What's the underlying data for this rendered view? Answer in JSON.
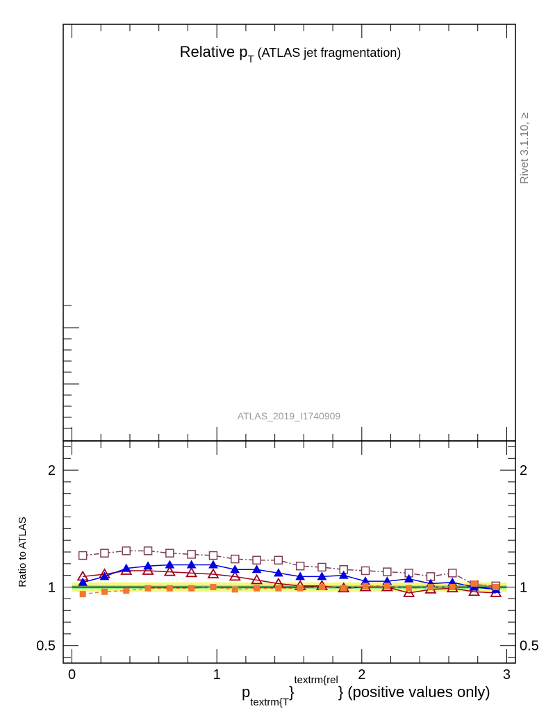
{
  "chart_data": {
    "type": "line",
    "title_main": "Relative p",
    "title_sub": "T",
    "title_rest": " (ATLAS jet fragmentation)",
    "analysis_label": "ATLAS_2019_I1740909",
    "side_label": "Rivet 3.1.10, ≥",
    "ratio_ylabel": "Ratio to ATLAS",
    "xlabel": {
      "p": "p",
      "sub": "textrm{T",
      "close": "}",
      "sup": "textrm{rel",
      "rest": "} (positive values only)"
    },
    "xlim": [
      -0.06,
      3.06
    ],
    "ratio_ylim": [
      0.35,
      2.25
    ],
    "x_ticks": [
      {
        "value": 0,
        "label": "0"
      },
      {
        "value": 1,
        "label": "1"
      },
      {
        "value": 2,
        "label": "2"
      },
      {
        "value": 3,
        "label": "3"
      }
    ],
    "ratio_y_ticks": [
      {
        "value": 0.5,
        "label": "0.5"
      },
      {
        "value": 1,
        "label": "1"
      },
      {
        "value": 2,
        "label": "2"
      }
    ],
    "x": [
      0.075,
      0.225,
      0.375,
      0.525,
      0.675,
      0.825,
      0.975,
      1.125,
      1.275,
      1.425,
      1.575,
      1.725,
      1.875,
      2.025,
      2.175,
      2.325,
      2.475,
      2.625,
      2.775,
      2.925
    ],
    "band_x": [
      0.0,
      3.0
    ],
    "band_inner": [
      0.985,
      1.015
    ],
    "band_outer": [
      0.96,
      1.04
    ],
    "series": [
      {
        "marker": "open-square",
        "color": "#7b3f52",
        "dash": "8,3,2,3",
        "values": [
          1.27,
          1.29,
          1.31,
          1.31,
          1.29,
          1.28,
          1.27,
          1.24,
          1.23,
          1.23,
          1.18,
          1.17,
          1.15,
          1.14,
          1.13,
          1.12,
          1.09,
          1.12,
          1.02,
          1.01
        ]
      },
      {
        "marker": "open-triangle",
        "color": "#a0001a",
        "dash": "",
        "values": [
          1.09,
          1.11,
          1.14,
          1.14,
          1.13,
          1.12,
          1.11,
          1.09,
          1.06,
          1.03,
          1.01,
          1.01,
          0.99,
          1.0,
          1.0,
          0.95,
          0.98,
          0.99,
          0.96,
          0.95
        ]
      },
      {
        "marker": "filled-triangle",
        "color": "#0000e0",
        "dash": "",
        "values": [
          1.04,
          1.09,
          1.16,
          1.18,
          1.19,
          1.19,
          1.19,
          1.15,
          1.15,
          1.12,
          1.09,
          1.09,
          1.1,
          1.05,
          1.05,
          1.07,
          1.03,
          1.04,
          1.0,
          0.98
        ]
      },
      {
        "marker": "filled-square",
        "color": "#f07830",
        "dash": "5,4",
        "values": [
          0.94,
          0.96,
          0.97,
          0.99,
          0.99,
          0.99,
          1.0,
          0.98,
          0.99,
          0.99,
          0.99,
          1.0,
          0.99,
          1.01,
          1.01,
          0.99,
          1.0,
          1.0,
          1.03,
          1.0
        ]
      }
    ]
  }
}
